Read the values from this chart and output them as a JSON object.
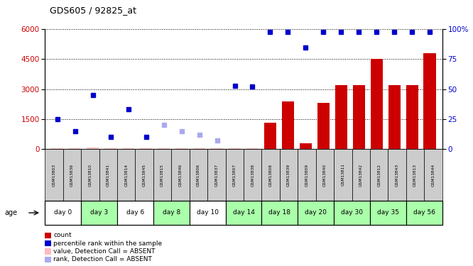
{
  "title": "GDS605 / 92825_at",
  "samples": [
    "GSM13803",
    "GSM13836",
    "GSM13810",
    "GSM13841",
    "GSM13814",
    "GSM13845",
    "GSM13815",
    "GSM13846",
    "GSM13806",
    "GSM13837",
    "GSM13807",
    "GSM13838",
    "GSM13808",
    "GSM13839",
    "GSM13809",
    "GSM13840",
    "GSM13811",
    "GSM13842",
    "GSM13812",
    "GSM13843",
    "GSM13813",
    "GSM13844"
  ],
  "days": [
    "day 0",
    "day 0",
    "day 3",
    "day 3",
    "day 6",
    "day 6",
    "day 8",
    "day 8",
    "day 10",
    "day 10",
    "day 14",
    "day 14",
    "day 18",
    "day 18",
    "day 20",
    "day 20",
    "day 30",
    "day 30",
    "day 35",
    "day 35",
    "day 56",
    "day 56"
  ],
  "day_group_list": [
    "day 0",
    "day 3",
    "day 6",
    "day 8",
    "day 10",
    "day 14",
    "day 18",
    "day 20",
    "day 30",
    "day 35",
    "day 56"
  ],
  "day_group_colors": [
    "#ffffff",
    "#aaffaa",
    "#ffffff",
    "#aaffaa",
    "#ffffff",
    "#aaffaa",
    "#aaffaa",
    "#aaffaa",
    "#aaffaa",
    "#aaffaa",
    "#aaffaa"
  ],
  "count_values": [
    50,
    30,
    80,
    40,
    50,
    30,
    40,
    30,
    40,
    30,
    40,
    30,
    1300,
    2400,
    300,
    2300,
    3200,
    3200,
    4500,
    3200,
    3200,
    4800
  ],
  "count_absent": [
    true,
    true,
    true,
    true,
    true,
    true,
    true,
    true,
    true,
    true,
    true,
    true,
    false,
    false,
    false,
    false,
    false,
    false,
    false,
    false,
    false,
    false
  ],
  "rank_pct": [
    25,
    15,
    45,
    10,
    33,
    10,
    20,
    15,
    12,
    7,
    53,
    52,
    98,
    98,
    85,
    98,
    98,
    98,
    98,
    98,
    98,
    98
  ],
  "rank_absent": [
    false,
    false,
    false,
    false,
    false,
    false,
    true,
    true,
    true,
    true,
    false,
    false,
    false,
    false,
    false,
    false,
    false,
    false,
    false,
    false,
    false,
    false
  ],
  "ylim_left": [
    0,
    6000
  ],
  "ylim_right": [
    0,
    100
  ],
  "yticks_left": [
    0,
    1500,
    3000,
    4500,
    6000
  ],
  "yticks_right": [
    0,
    25,
    50,
    75,
    100
  ],
  "bar_color_present": "#cc0000",
  "bar_color_absent": "#ffbbbb",
  "dot_color_present": "#0000cc",
  "dot_color_absent": "#aaaaee",
  "bg_color": "#ffffff",
  "legend_items": [
    {
      "color": "#cc0000",
      "label": "count"
    },
    {
      "color": "#0000cc",
      "label": "percentile rank within the sample"
    },
    {
      "color": "#ffbbbb",
      "label": "value, Detection Call = ABSENT"
    },
    {
      "color": "#aaaaee",
      "label": "rank, Detection Call = ABSENT"
    }
  ]
}
